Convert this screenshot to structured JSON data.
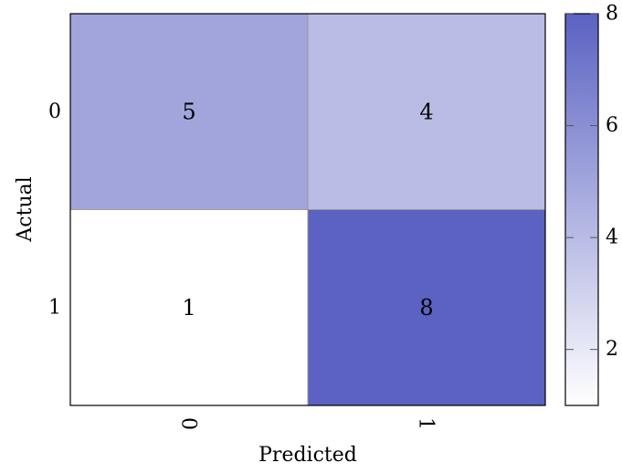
{
  "chart_data": {
    "type": "heatmap",
    "title": "",
    "xlabel": "Predicted",
    "ylabel": "Actual",
    "x_categories": [
      "0",
      "1"
    ],
    "y_categories": [
      "0",
      "1"
    ],
    "matrix": [
      [
        5,
        4
      ],
      [
        1,
        8
      ]
    ],
    "colorbar": {
      "min": 1,
      "max": 8,
      "ticks": [
        2,
        4,
        6,
        8
      ],
      "color_low": "#ffffff",
      "color_high": "#5b62c2"
    }
  }
}
